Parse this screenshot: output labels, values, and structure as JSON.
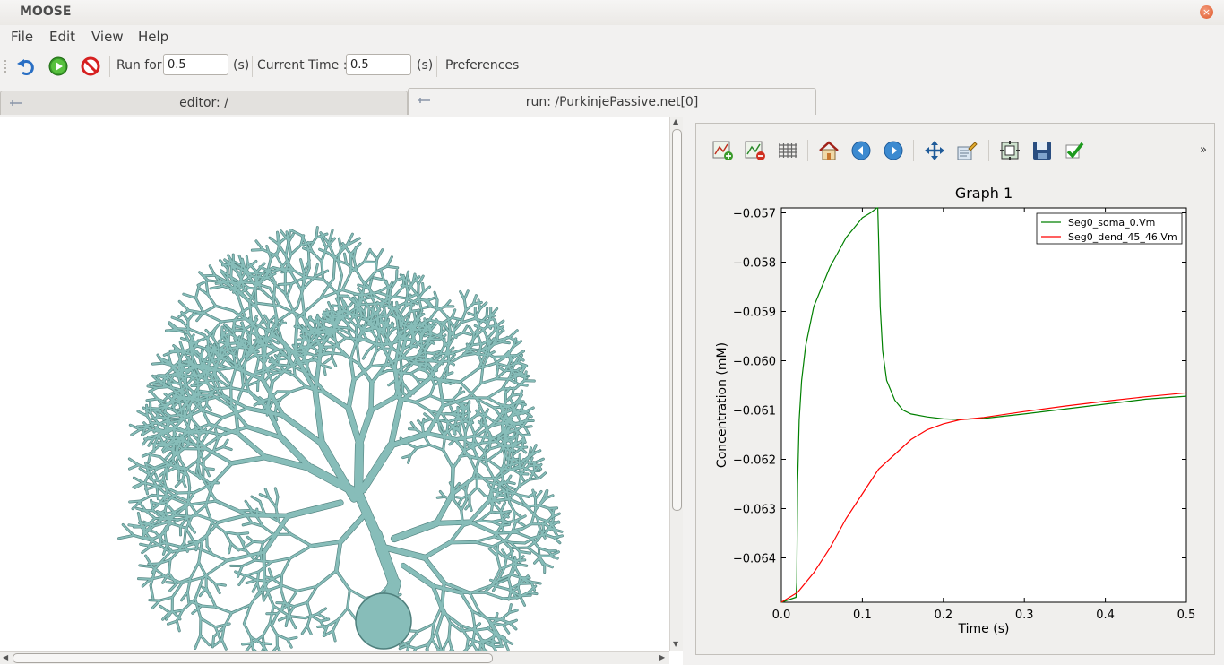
{
  "window": {
    "title": "MOOSE",
    "close_glyph": "×"
  },
  "menu": {
    "items": [
      "File",
      "Edit",
      "View",
      "Help"
    ]
  },
  "toolbar": {
    "run_for_label": "Run for",
    "run_for_value": "0.5",
    "run_for_unit": "(s)",
    "current_time_label": "Current Time :",
    "current_time_value": "0.5",
    "current_time_unit": "(s)",
    "preferences_label": "Preferences",
    "icons": [
      "reset-icon",
      "run-icon",
      "stop-icon"
    ]
  },
  "tabs": [
    {
      "label": "editor: /",
      "active": false
    },
    {
      "label": "run: /PurkinjePassive.net[0]",
      "active": true
    }
  ],
  "plot_toolbar": {
    "icons": [
      "add-plot-icon",
      "remove-plot-icon",
      "grid-icon",
      "home-icon",
      "back-icon",
      "forward-icon",
      "pan-icon",
      "configure-icon",
      "subplots-icon",
      "save-icon",
      "apply-icon"
    ],
    "more_glyph": "»"
  },
  "chart_data": {
    "type": "line",
    "title": "Graph 1",
    "xlabel": "Time (s)",
    "ylabel": "Concentration (mM)",
    "xlim": [
      0.0,
      0.5
    ],
    "ylim": [
      -0.0649,
      -0.0569
    ],
    "xticks": [
      "0.0",
      "0.1",
      "0.2",
      "0.3",
      "0.4",
      "0.5"
    ],
    "xtick_values": [
      0.0,
      0.1,
      0.2,
      0.3,
      0.4,
      0.5
    ],
    "yticks": [
      "−0.057",
      "−0.058",
      "−0.059",
      "−0.060",
      "−0.061",
      "−0.062",
      "−0.063",
      "−0.064"
    ],
    "ytick_values": [
      -0.057,
      -0.058,
      -0.059,
      -0.06,
      -0.061,
      -0.062,
      -0.063,
      -0.064
    ],
    "grid": false,
    "legend_position": "upper-right",
    "series": [
      {
        "name": "Seg0_soma_0.Vm",
        "color": "#008000",
        "x": [
          0.0,
          0.018,
          0.019,
          0.02,
          0.022,
          0.025,
          0.03,
          0.04,
          0.05,
          0.06,
          0.07,
          0.08,
          0.09,
          0.1,
          0.11,
          0.118,
          0.119,
          0.12,
          0.122,
          0.125,
          0.13,
          0.14,
          0.15,
          0.16,
          0.18,
          0.2,
          0.22,
          0.25,
          0.3,
          0.35,
          0.4,
          0.45,
          0.5
        ],
        "y": [
          -0.0649,
          -0.0648,
          -0.0645,
          -0.0625,
          -0.0612,
          -0.0604,
          -0.0597,
          -0.0589,
          -0.0585,
          -0.0581,
          -0.0578,
          -0.0575,
          -0.0573,
          -0.0571,
          -0.057,
          -0.0569,
          -0.0569,
          -0.0575,
          -0.0589,
          -0.0598,
          -0.0604,
          -0.0608,
          -0.061,
          -0.06108,
          -0.06114,
          -0.06118,
          -0.06119,
          -0.06117,
          -0.06108,
          -0.06098,
          -0.06088,
          -0.06078,
          -0.06072
        ]
      },
      {
        "name": "Seg0_dend_45_46.Vm",
        "color": "#ff0000",
        "x": [
          0.0,
          0.02,
          0.04,
          0.06,
          0.08,
          0.1,
          0.12,
          0.14,
          0.16,
          0.18,
          0.2,
          0.22,
          0.25,
          0.3,
          0.35,
          0.4,
          0.45,
          0.5
        ],
        "y": [
          -0.0649,
          -0.0647,
          -0.0643,
          -0.0638,
          -0.0632,
          -0.0627,
          -0.0622,
          -0.0619,
          -0.0616,
          -0.0614,
          -0.06128,
          -0.0612,
          -0.06115,
          -0.06103,
          -0.06092,
          -0.06082,
          -0.06073,
          -0.06065
        ]
      }
    ]
  },
  "colors": {
    "neuron": "#87bdb9",
    "neuron_dark": "#4e7f7c"
  }
}
